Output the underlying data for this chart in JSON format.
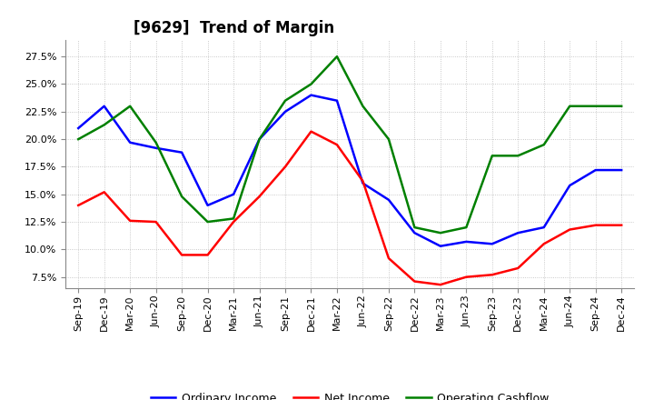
{
  "title": "[9629]  Trend of Margin",
  "x_labels": [
    "Sep-19",
    "Dec-19",
    "Mar-20",
    "Jun-20",
    "Sep-20",
    "Dec-20",
    "Mar-21",
    "Jun-21",
    "Sep-21",
    "Dec-21",
    "Mar-22",
    "Jun-22",
    "Sep-22",
    "Dec-22",
    "Mar-23",
    "Jun-23",
    "Sep-23",
    "Dec-23",
    "Mar-24",
    "Jun-24",
    "Sep-24",
    "Dec-24"
  ],
  "ordinary_income": [
    0.21,
    0.23,
    0.197,
    0.192,
    0.188,
    0.14,
    0.15,
    0.2,
    0.225,
    0.24,
    0.235,
    0.16,
    0.145,
    0.115,
    0.103,
    0.107,
    0.105,
    0.115,
    0.12,
    0.158,
    0.172,
    0.172
  ],
  "net_income": [
    0.14,
    0.152,
    0.126,
    0.125,
    0.095,
    0.095,
    0.125,
    0.148,
    0.175,
    0.207,
    0.195,
    0.162,
    0.092,
    0.071,
    0.068,
    0.075,
    0.077,
    0.083,
    0.105,
    0.118,
    0.122,
    0.122
  ],
  "operating_cashflow": [
    0.2,
    0.213,
    0.23,
    0.197,
    0.148,
    0.125,
    0.128,
    0.2,
    0.235,
    0.25,
    0.275,
    0.23,
    0.2,
    0.12,
    0.115,
    0.12,
    0.185,
    0.185,
    0.195,
    0.23,
    0.23,
    0.23
  ],
  "ylim": [
    0.065,
    0.29
  ],
  "yticks": [
    0.075,
    0.1,
    0.125,
    0.15,
    0.175,
    0.2,
    0.225,
    0.25,
    0.275
  ],
  "ordinary_color": "#0000FF",
  "net_color": "#FF0000",
  "cashflow_color": "#008000",
  "bg_color": "#FFFFFF",
  "grid_color": "#BBBBBB",
  "legend_labels": [
    "Ordinary Income",
    "Net Income",
    "Operating Cashflow"
  ],
  "title_fontsize": 12,
  "tick_fontsize": 8
}
